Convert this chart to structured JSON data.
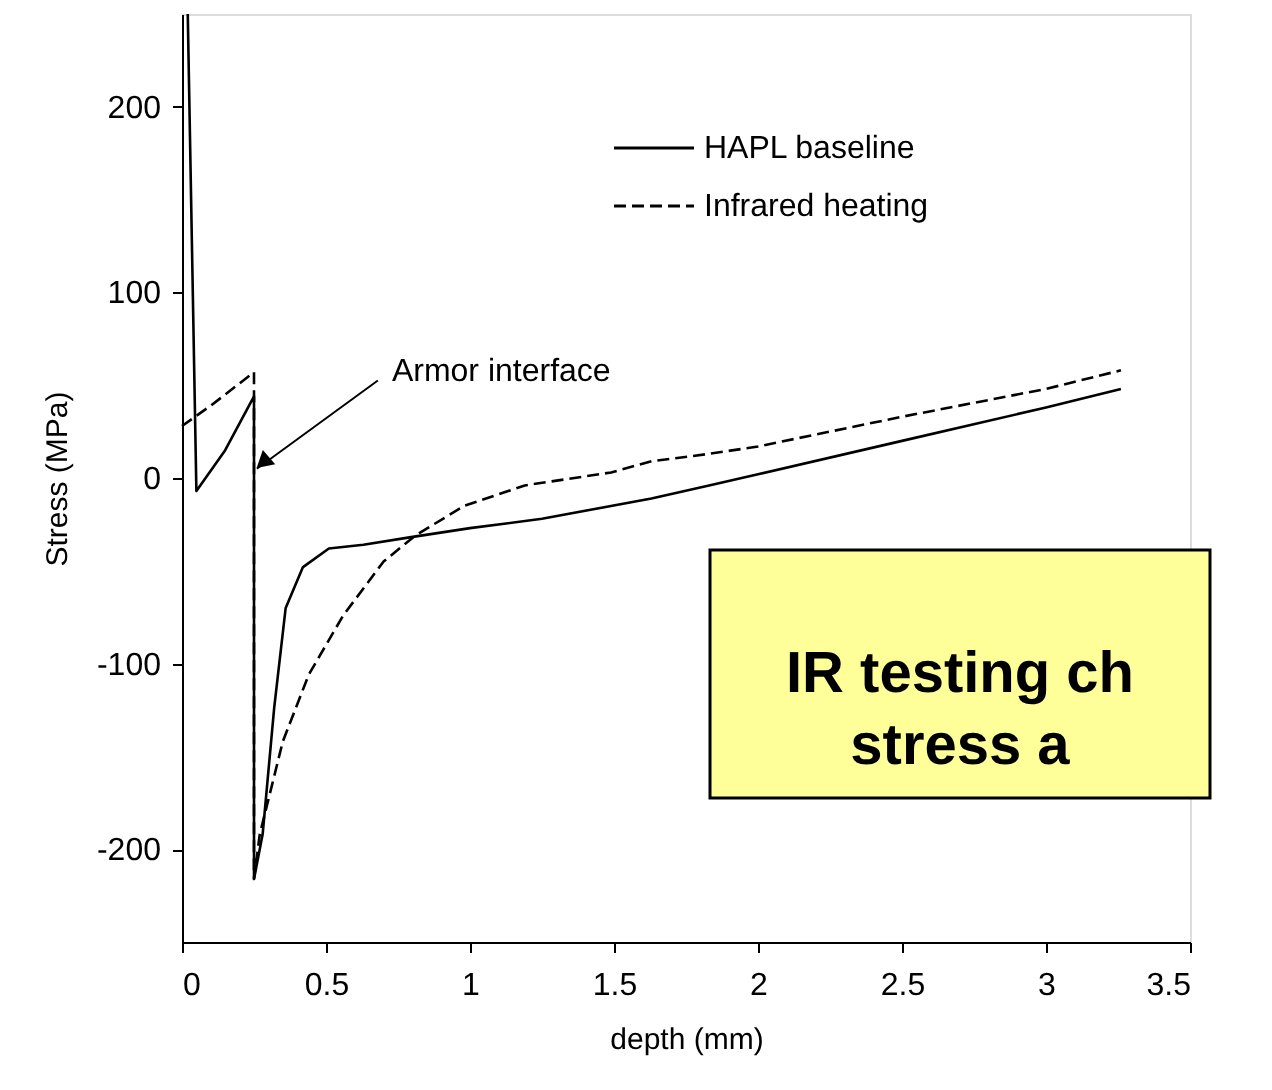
{
  "chart_data": {
    "type": "line",
    "xlabel": "depth (mm)",
    "ylabel": "Stress (MPa)",
    "xlim": [
      0,
      3.5
    ],
    "ylim": [
      -250,
      250
    ],
    "xticks": [
      0,
      0.5,
      1,
      1.5,
      2,
      2.5,
      3,
      3.5
    ],
    "yticks": [
      -200,
      -100,
      0,
      100,
      200
    ],
    "grid": false,
    "legend": "top",
    "marker": "none",
    "series": [
      {
        "name": "HAPL baseline",
        "color": "#000000",
        "line_style": "solid",
        "x": [
          0.02,
          0.05,
          0.15,
          0.25,
          0.25,
          0.28,
          0.32,
          0.36,
          0.42,
          0.51,
          0.63,
          0.79,
          1.0,
          1.25,
          1.63,
          1.83,
          2.0,
          2.5,
          3.0,
          3.26
        ],
        "values": [
          250,
          -7,
          15,
          44,
          -216,
          -192,
          -124,
          -70,
          -48,
          -38,
          -36,
          -32,
          -27,
          -22,
          -11,
          -4,
          2,
          20,
          38,
          48
        ]
      },
      {
        "name": "Infrared heating",
        "color": "#000000",
        "line_style": "dashed",
        "x": [
          0,
          0.1,
          0.25,
          0.25,
          0.27,
          0.35,
          0.44,
          0.56,
          0.7,
          0.81,
          0.98,
          1.19,
          1.49,
          1.63,
          1.83,
          2.0,
          2.5,
          3.0,
          3.26
        ],
        "values": [
          28,
          39,
          57,
          -216,
          -192,
          -142,
          -106,
          -74,
          -45,
          -31,
          -15,
          -4,
          3,
          9,
          13,
          17,
          33,
          48,
          58
        ]
      }
    ],
    "annotations": [
      {
        "text": "Armor interface",
        "x": 0.26,
        "y": 5
      },
      "IR testing ch\nstress a"
    ]
  }
}
